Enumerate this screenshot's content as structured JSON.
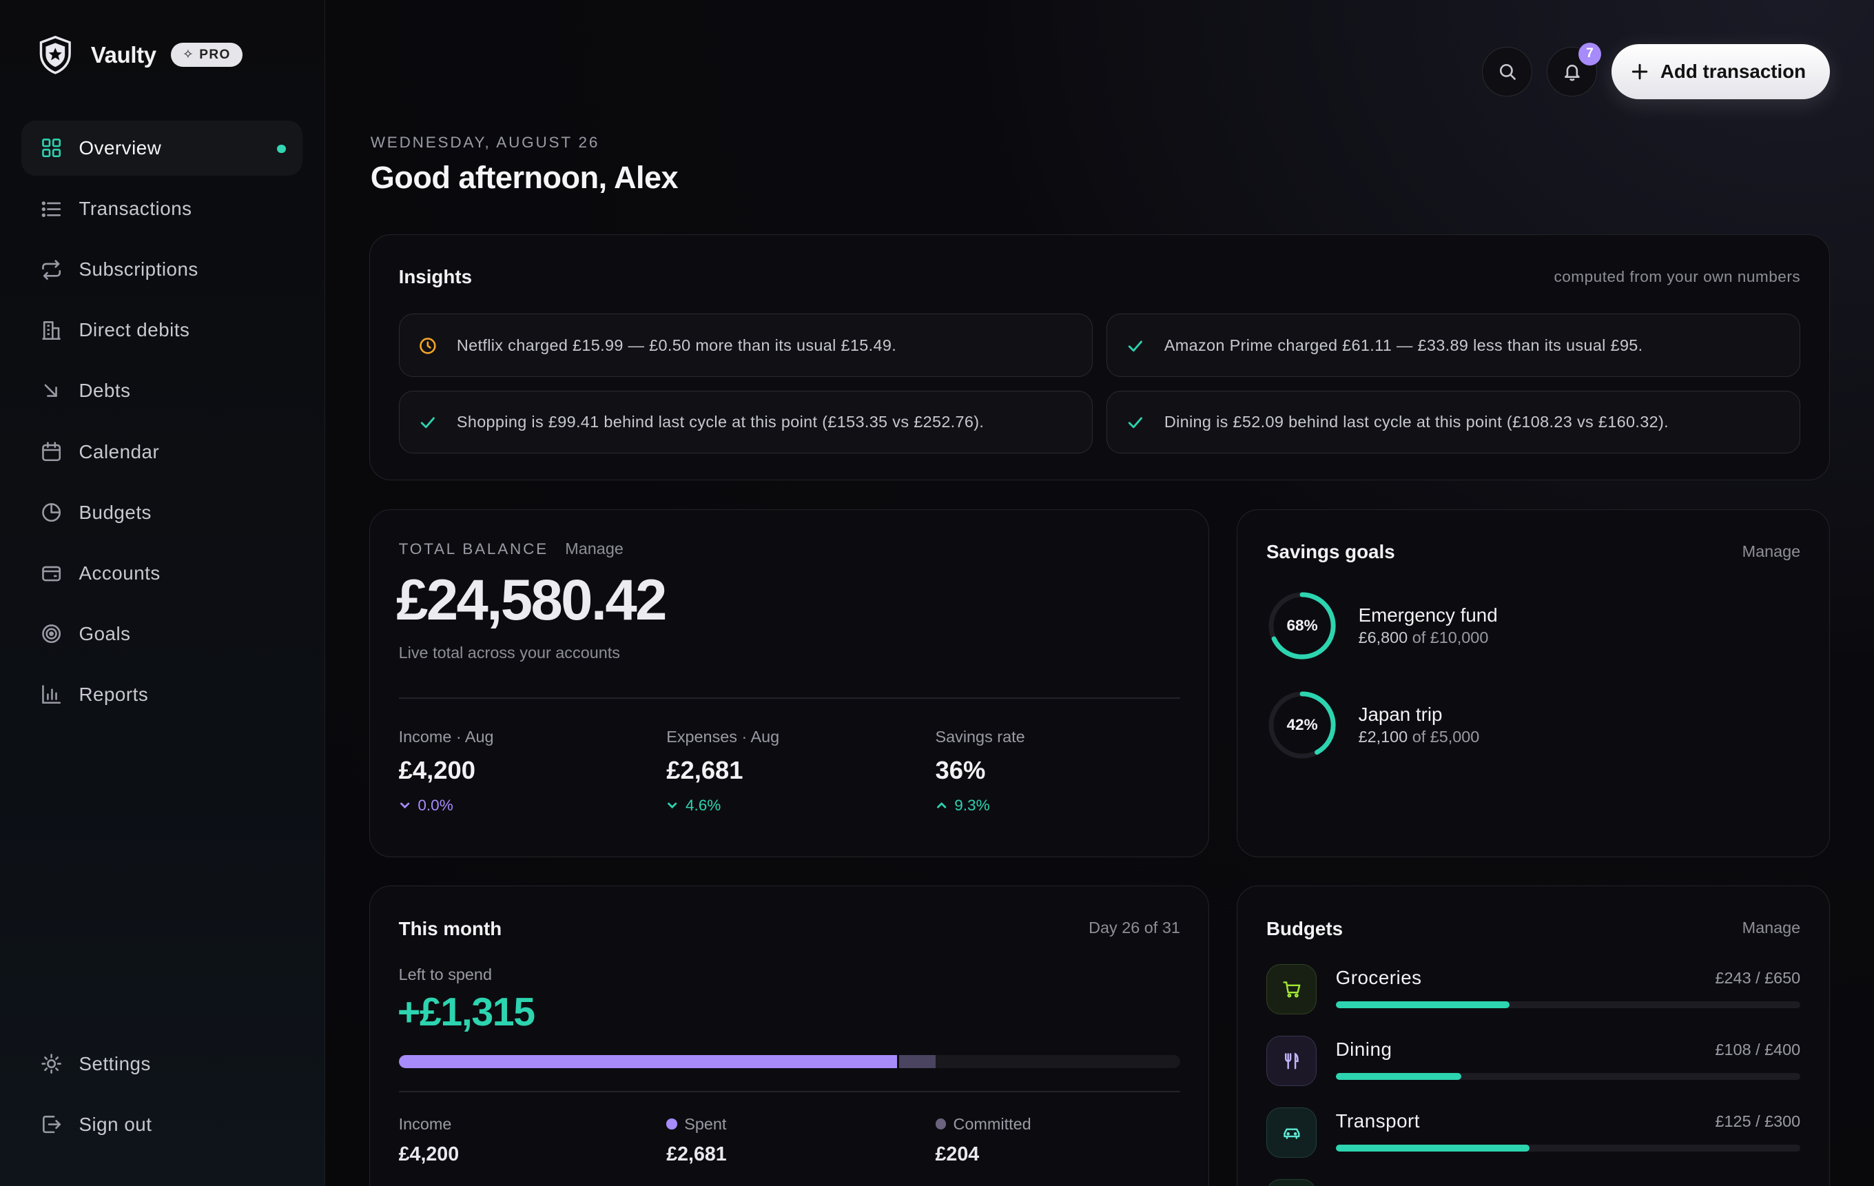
{
  "app": {
    "name": "Vaulty",
    "badge": "PRO"
  },
  "nav": {
    "items": [
      {
        "label": "Overview",
        "icon": "grid-icon",
        "active": true
      },
      {
        "label": "Transactions",
        "icon": "list-icon"
      },
      {
        "label": "Subscriptions",
        "icon": "repeat-icon"
      },
      {
        "label": "Direct debits",
        "icon": "bank-icon"
      },
      {
        "label": "Debts",
        "icon": "arrow-down-right-icon"
      },
      {
        "label": "Calendar",
        "icon": "calendar-icon"
      },
      {
        "label": "Budgets",
        "icon": "pie-chart-icon"
      },
      {
        "label": "Accounts",
        "icon": "wallet-icon"
      },
      {
        "label": "Goals",
        "icon": "target-icon"
      },
      {
        "label": "Reports",
        "icon": "bar-chart-icon"
      }
    ],
    "bottom": [
      {
        "label": "Settings",
        "icon": "sun-icon"
      },
      {
        "label": "Sign out",
        "icon": "logout-icon"
      }
    ]
  },
  "header": {
    "date": "WEDNESDAY, AUGUST 26",
    "greeting": "Good afternoon, Alex",
    "notifications": "7",
    "add_label": "Add transaction"
  },
  "insights": {
    "title": "Insights",
    "subtitle": "computed from your own numbers",
    "items": [
      {
        "text": "Netflix charged £15.99 — £0.50 more than its usual £15.49.",
        "type": "warning"
      },
      {
        "text": "Amazon Prime charged £61.11 — £33.89 less than its usual £95.",
        "type": "ok"
      },
      {
        "text": "Shopping is £99.41 behind last cycle at this point (£153.35 vs £252.76).",
        "type": "ok"
      },
      {
        "text": "Dining is £52.09 behind last cycle at this point (£108.23 vs £160.32).",
        "type": "ok"
      }
    ]
  },
  "balance": {
    "label": "TOTAL BALANCE",
    "manage": "Manage",
    "amount": "£24,580.42",
    "caption": "Live total across your accounts",
    "stats": [
      {
        "label": "Income · Aug",
        "value": "£4,200",
        "delta": "0.0%",
        "direction": "down",
        "color": "#a78bfa"
      },
      {
        "label": "Expenses · Aug",
        "value": "£2,681",
        "delta": "4.6%",
        "direction": "down",
        "color": "#2dd4b0"
      },
      {
        "label": "Savings rate",
        "value": "36%",
        "delta": "9.3%",
        "direction": "up",
        "color": "#2dd4b0"
      }
    ]
  },
  "savings": {
    "title": "Savings goals",
    "manage": "Manage",
    "goals": [
      {
        "percent_label": "68%",
        "progress": 0.68,
        "name": "Emergency fund",
        "saved": "£6,800",
        "of": "of",
        "target": "£10,000"
      },
      {
        "percent_label": "42%",
        "progress": 0.42,
        "name": "Japan trip",
        "saved": "£2,100",
        "of": "of",
        "target": "£5,000"
      }
    ]
  },
  "month": {
    "title": "This month",
    "day": "Day 26 of 31",
    "left_label": "Left to spend",
    "left_value": "+£1,315",
    "spent_fraction": 0.638,
    "committed_fraction": 0.049,
    "cols": [
      {
        "label": "Income",
        "value": "£4,200",
        "dot": null
      },
      {
        "label": "Spent",
        "value": "£2,681",
        "dot": "#a78bfa"
      },
      {
        "label": "Committed",
        "value": "£204",
        "dot": "#6b6280"
      }
    ]
  },
  "budgets": {
    "title": "Budgets",
    "manage": "Manage",
    "items": [
      {
        "name": "Groceries",
        "value": "£243 / £650",
        "progress": 0.374,
        "icon": "cart-icon",
        "tint": "#a3e635"
      },
      {
        "name": "Dining",
        "value": "£108 / £400",
        "progress": 0.27,
        "icon": "utensils-icon",
        "tint": "#a78bfa"
      },
      {
        "name": "Transport",
        "value": "£125 / £300",
        "progress": 0.417,
        "icon": "car-icon",
        "tint": "#2dd4b0"
      }
    ]
  },
  "colors": {
    "accent": "#2dd4b0",
    "purple": "#a78bfa",
    "warning": "#f5a524"
  }
}
